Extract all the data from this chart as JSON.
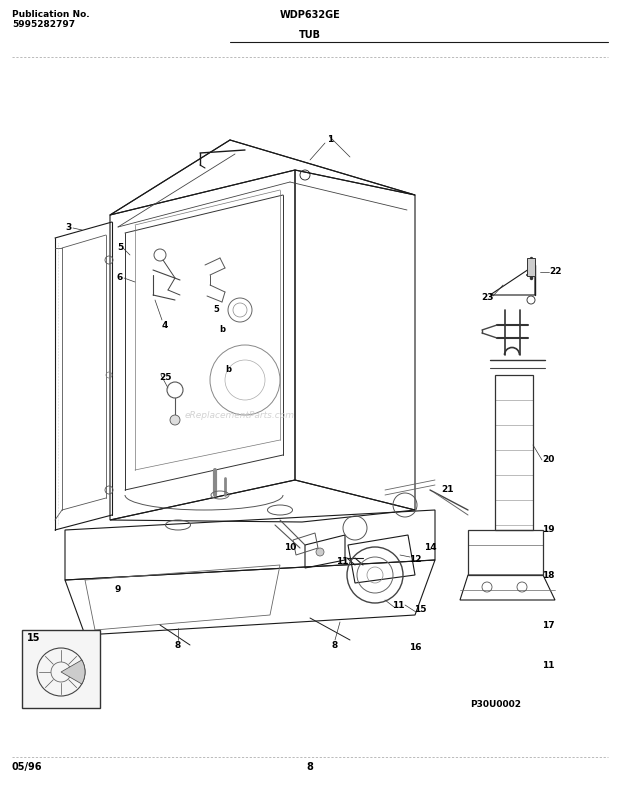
{
  "bg_color": "#ffffff",
  "title_left_line1": "Publication No.",
  "title_left_line2": "5995282797",
  "title_center": "WDP632GE",
  "subtitle": "TUB",
  "footer_left": "05/96",
  "footer_center": "8",
  "watermark": "eReplacementParts.com",
  "part_code": "P30U0002",
  "line_color": "#1a1a1a",
  "light_line": "#555555",
  "fig_width": 6.2,
  "fig_height": 7.91,
  "dpi": 100
}
